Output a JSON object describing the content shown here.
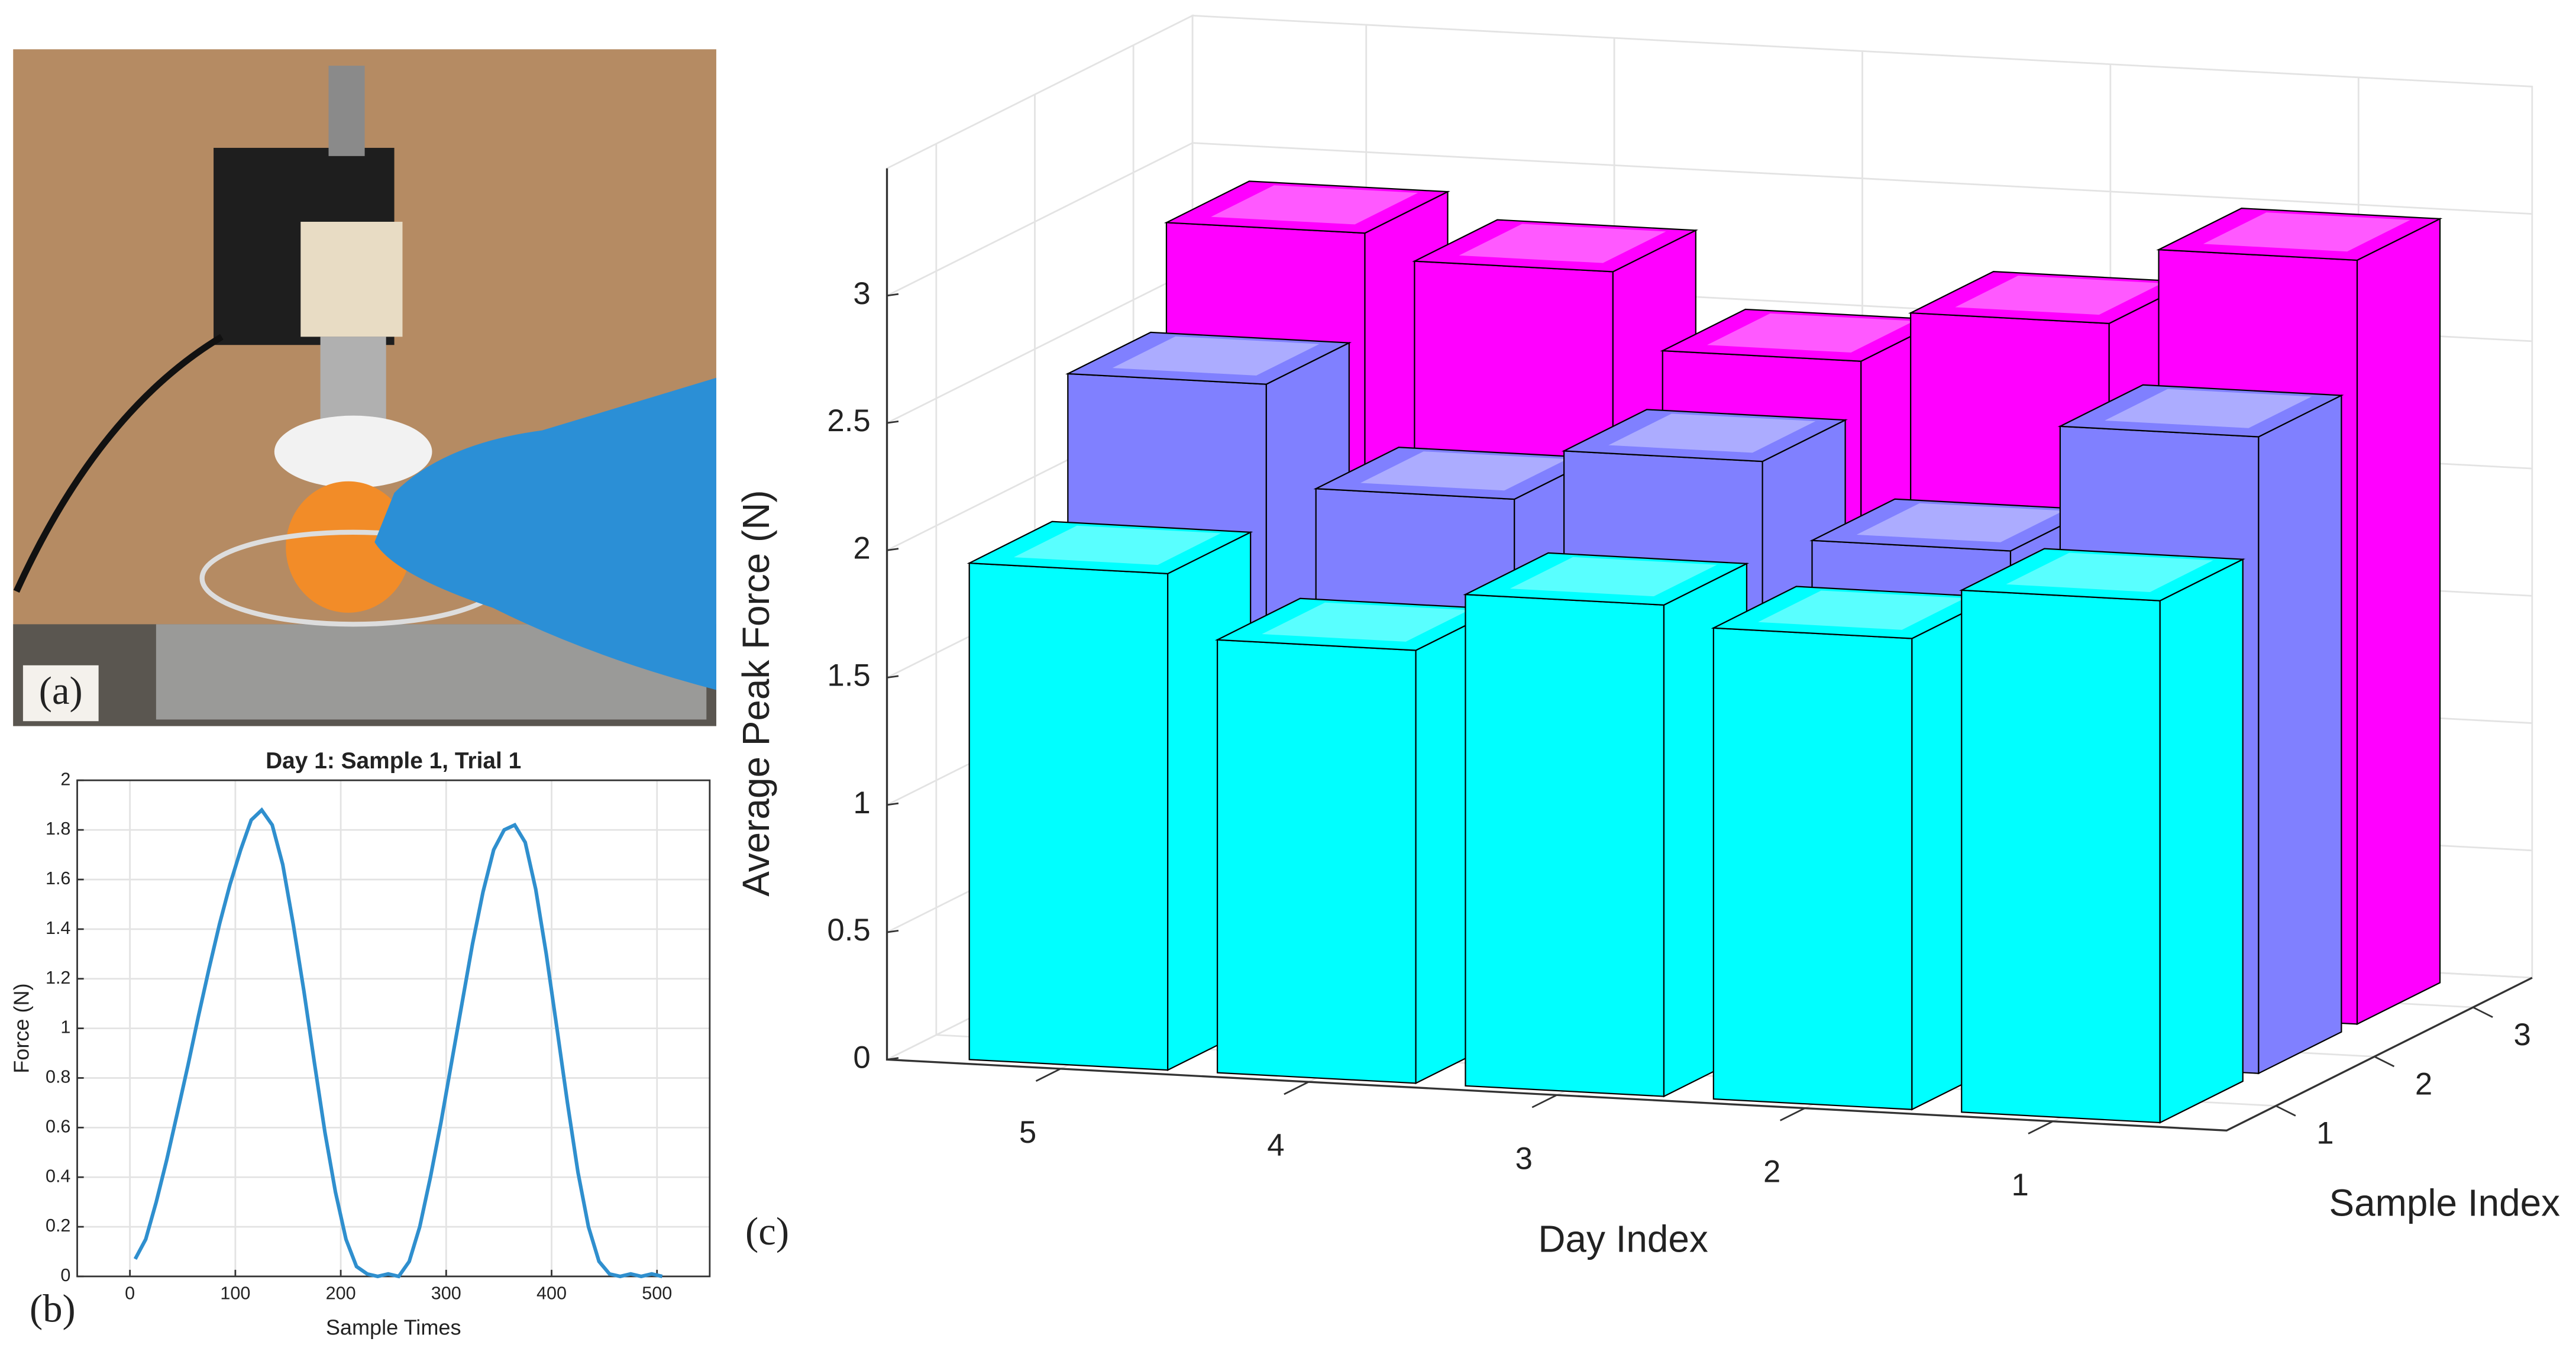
{
  "photo": {
    "panel_label": "(a)"
  },
  "chart_data": [
    {
      "type": "line",
      "panel_label": "(b)",
      "title": "Day 1: Sample 1, Trial 1",
      "xlabel": "Sample Times",
      "ylabel": "Force (N)",
      "x": [
        5,
        15,
        25,
        35,
        45,
        55,
        65,
        75,
        85,
        95,
        105,
        115,
        125,
        135,
        145,
        155,
        165,
        175,
        185,
        195,
        205,
        215,
        225,
        235,
        245,
        255,
        265,
        275,
        285,
        295,
        305,
        315,
        325,
        335,
        345,
        355,
        365,
        375,
        385,
        395,
        405,
        415,
        425,
        435,
        445,
        455,
        465,
        475,
        485,
        495,
        505
      ],
      "values": [
        0.07,
        0.15,
        0.3,
        0.47,
        0.66,
        0.85,
        1.05,
        1.24,
        1.42,
        1.58,
        1.72,
        1.84,
        1.88,
        1.82,
        1.66,
        1.42,
        1.15,
        0.86,
        0.58,
        0.34,
        0.15,
        0.04,
        0.01,
        0,
        0.01,
        0,
        0.06,
        0.2,
        0.4,
        0.62,
        0.86,
        1.1,
        1.34,
        1.55,
        1.72,
        1.8,
        1.82,
        1.75,
        1.56,
        1.3,
        1.0,
        0.7,
        0.42,
        0.2,
        0.06,
        0.01,
        0,
        0.01,
        0,
        0.01,
        0
      ],
      "color": "#2f8fce",
      "xlim": [
        -50,
        550
      ],
      "xticks": [
        0,
        100,
        200,
        300,
        400,
        500
      ],
      "ylim": [
        0,
        2
      ],
      "yticks": [
        0,
        0.2,
        0.4,
        0.6,
        0.8,
        1,
        1.2,
        1.4,
        1.6,
        1.8,
        2
      ],
      "grid": true
    },
    {
      "type": "bar3d",
      "panel_label": "(c)",
      "xlabel": "Day Index",
      "ylabel": "Sample Index",
      "zlabel": "Average Peak Force (N)",
      "categories": [
        "5",
        "4",
        "3",
        "2",
        "1"
      ],
      "series": [
        {
          "name": "1",
          "color": "#00ffff",
          "values": [
            1.95,
            1.7,
            1.93,
            1.85,
            2.05
          ]
        },
        {
          "name": "2",
          "color": "#8080ff",
          "values": [
            2.5,
            2.1,
            2.3,
            2.0,
            2.5
          ]
        },
        {
          "name": "3",
          "color": "#ff00ff",
          "values": [
            2.9,
            2.8,
            2.5,
            2.7,
            3.0
          ]
        }
      ],
      "zlim": [
        0,
        3.5
      ],
      "zticks": [
        0,
        0.5,
        1,
        1.5,
        2,
        2.5,
        3
      ],
      "grid": true
    }
  ]
}
